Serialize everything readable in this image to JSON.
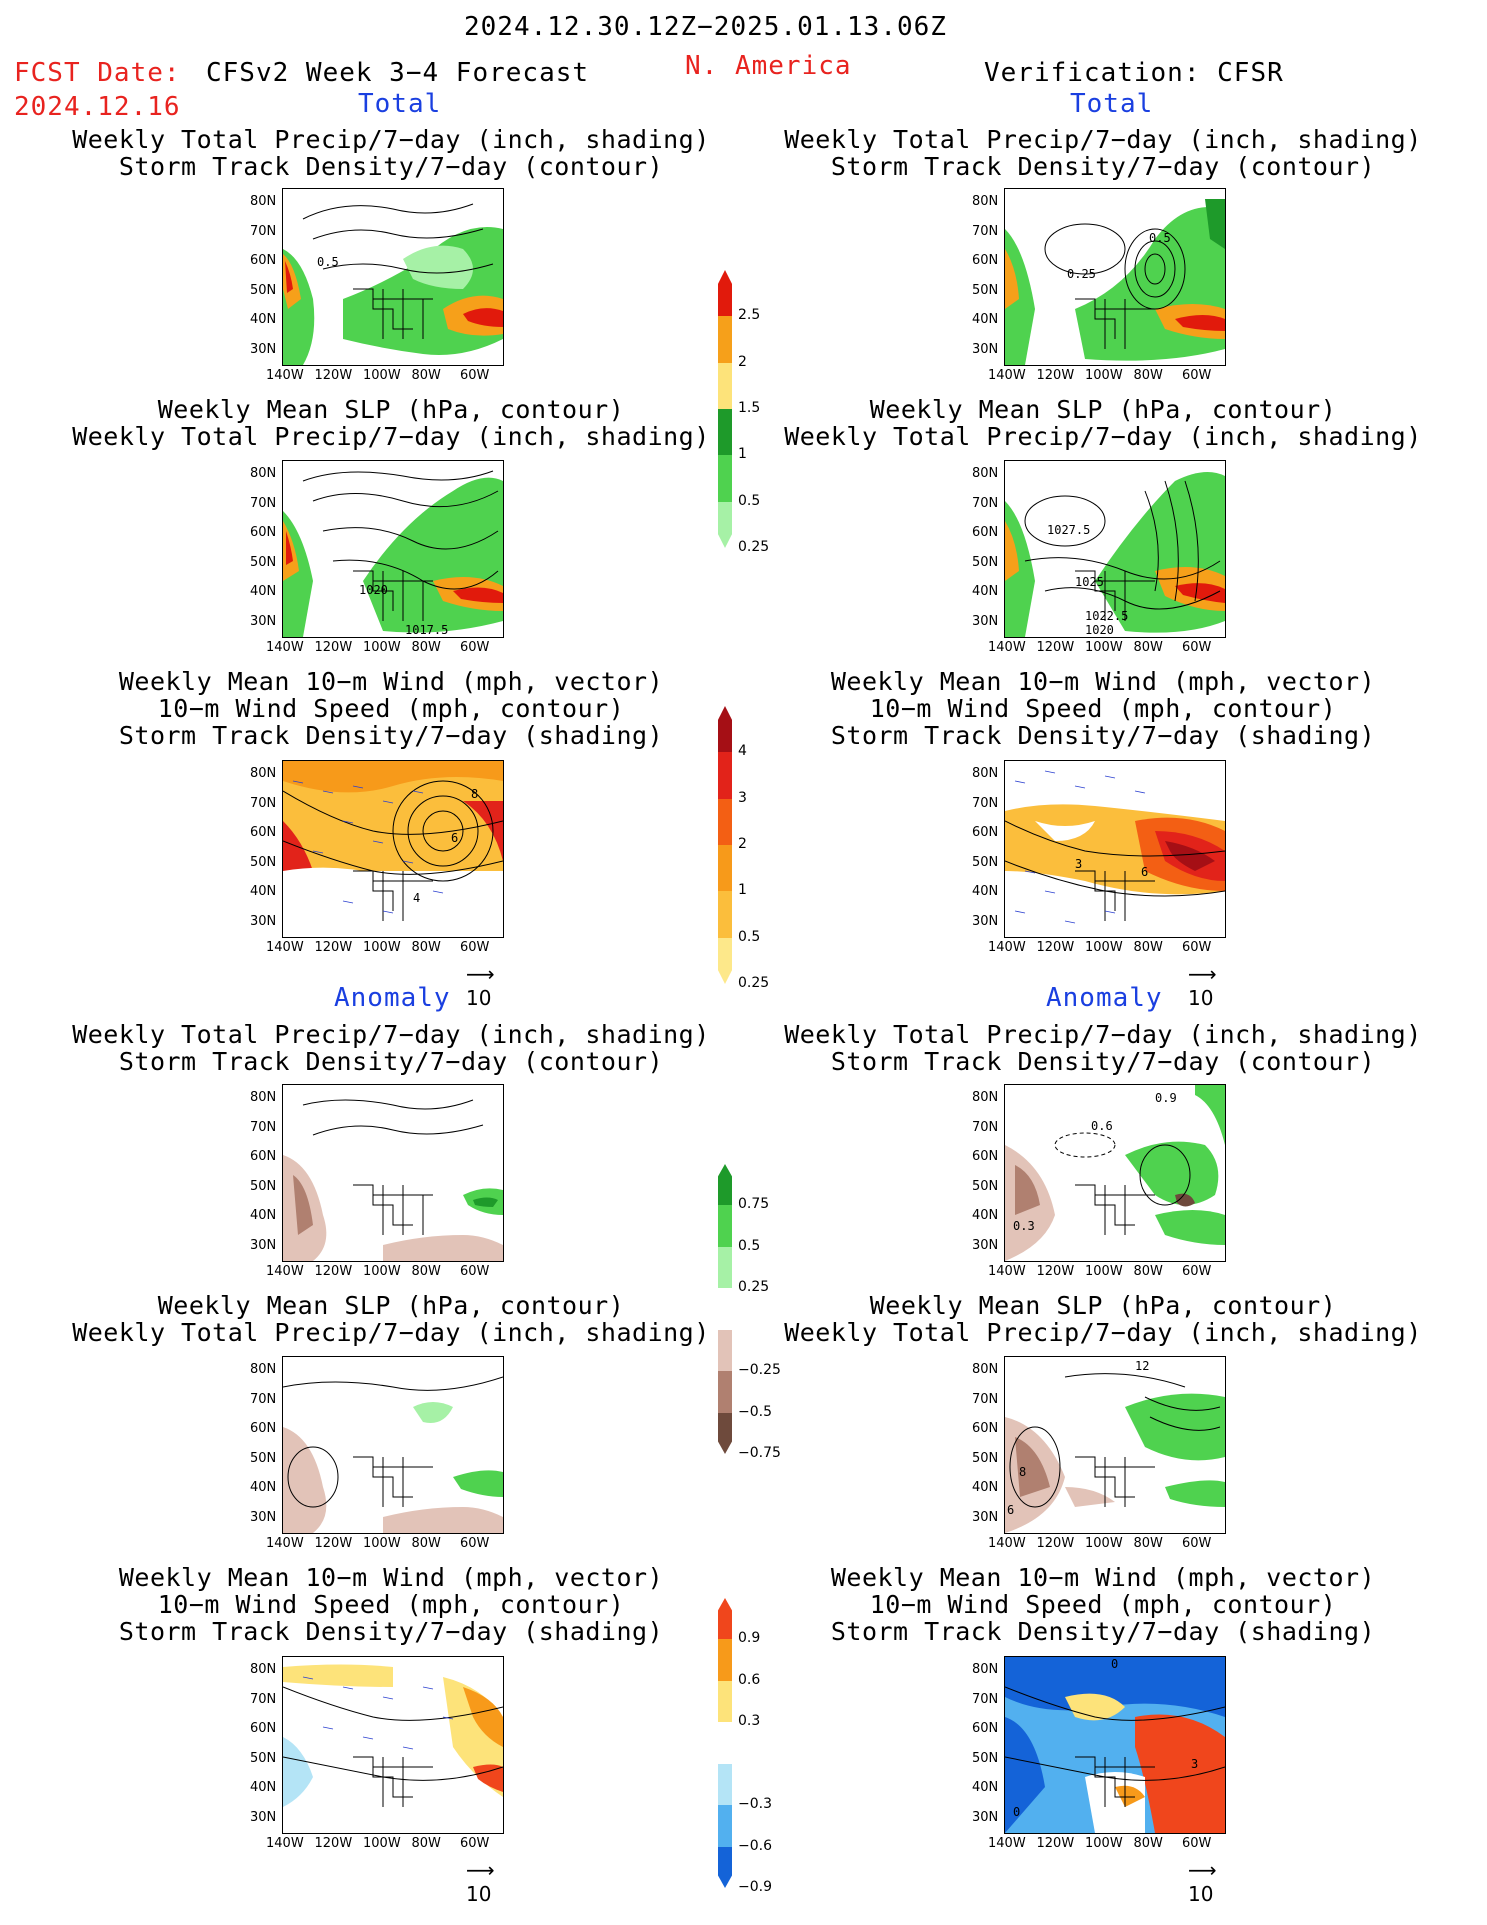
{
  "header": {
    "period": "2024.12.30.12Z−2025.01.13.06Z",
    "fcst_label": "FCST Date:",
    "fcst_date": "2024.12.16",
    "model": "CFSv2 Week 3−4 Forecast",
    "region": "N. America",
    "verification": "Verification: CFSR"
  },
  "sections": {
    "total": "Total",
    "anomaly": "Anomaly"
  },
  "titles": {
    "precip_storm": [
      "Weekly Total Precip/7−day (inch, shading)",
      "Storm Track Density/7−day (contour)"
    ],
    "slp_precip": [
      "Weekly Mean SLP (hPa, contour)",
      "Weekly Total Precip/7−day (inch, shading)"
    ],
    "wind_storm": [
      "Weekly Mean 10−m Wind (mph, vector)",
      "10−m Wind Speed (mph, contour)",
      "Storm Track Density/7−day (shading)"
    ]
  },
  "axes": {
    "lat_ticks": [
      "80N",
      "70N",
      "60N",
      "50N",
      "40N",
      "30N"
    ],
    "lon_ticks": [
      "140W",
      "120W",
      "100W",
      "80W",
      "60W"
    ]
  },
  "vector_ref": "10",
  "map_labels": {
    "fc_total_precip": [
      "0.5"
    ],
    "vf_total_precip": [
      "0.5",
      "0.25"
    ],
    "fc_total_slp": [
      "1020",
      "1017.5"
    ],
    "vf_total_slp": [
      "1027.5",
      "1025",
      "1022.5",
      "1020"
    ],
    "fc_total_wind": [
      "8",
      "6",
      "4"
    ],
    "vf_total_wind": [
      "3",
      "6"
    ],
    "vf_anom_precip": [
      "0.9",
      "0.6",
      "0.3"
    ],
    "vf_anom_slp": [
      "12",
      "8",
      "6"
    ],
    "vf_anom_wind": [
      "0",
      "3",
      "0"
    ]
  },
  "colorbars": {
    "precip_total": {
      "labels": [
        "2.5",
        "2",
        "1.5",
        "1",
        "0.5",
        "0.25"
      ],
      "colors": [
        "#e11a0c",
        "#f6a01a",
        "#fde37a",
        "#1e9a2a",
        "#4fd24f",
        "#a6f1a6"
      ]
    },
    "storm_total": {
      "labels": [
        "4",
        "3",
        "2",
        "1",
        "0.5",
        "0.25"
      ],
      "colors": [
        "#a50f15",
        "#e2231a",
        "#f35f14",
        "#f79a1a",
        "#fbbe3c",
        "#fde88a"
      ]
    },
    "precip_anom": {
      "labels": [
        "0.75",
        "0.5",
        "0.25",
        "−0.25",
        "−0.5",
        "−0.75"
      ],
      "colors": [
        "#1e9a2a",
        "#4fd24f",
        "#a6f1a6",
        "#ffffff",
        "#e2c3b8",
        "#b08070",
        "#6e4a3c"
      ]
    },
    "storm_anom": {
      "labels": [
        "0.9",
        "0.6",
        "0.3",
        "−0.3",
        "−0.6",
        "−0.9"
      ],
      "colors": [
        "#f0461c",
        "#f79a1a",
        "#fde37a",
        "#ffffff",
        "#b4e4f6",
        "#52b0ef",
        "#1463d8"
      ]
    }
  },
  "chart_data": [
    {
      "type": "heatmap",
      "panel": "forecast-total-precip",
      "title": "Weekly Total Precip/7−day (inch, shading) / Storm Track Density/7−day (contour)"
    },
    {
      "type": "heatmap",
      "panel": "verification-total-precip",
      "title": "Weekly Total Precip/7−day (inch, shading) / Storm Track Density/7−day (contour)"
    },
    {
      "type": "heatmap",
      "panel": "forecast-total-slp",
      "title": "Weekly Mean SLP (hPa, contour) / Weekly Total Precip/7−day (inch, shading)"
    },
    {
      "type": "heatmap",
      "panel": "verification-total-slp",
      "title": "Weekly Mean SLP (hPa, contour) / Weekly Total Precip/7−day (inch, shading)"
    },
    {
      "type": "heatmap",
      "panel": "forecast-total-wind",
      "title": "Weekly Mean 10−m Wind (mph, vector) / 10−m Wind Speed (mph, contour) / Storm Track Density/7−day (shading)"
    },
    {
      "type": "heatmap",
      "panel": "verification-total-wind",
      "title": "Weekly Mean 10−m Wind (mph, vector) / 10−m Wind Speed (mph, contour) / Storm Track Density/7−day (shading)"
    },
    {
      "type": "heatmap",
      "panel": "forecast-anomaly-precip",
      "title": "Weekly Total Precip/7−day (inch, shading) / Storm Track Density/7−day (contour)"
    },
    {
      "type": "heatmap",
      "panel": "verification-anomaly-precip",
      "title": "Weekly Total Precip/7−day (inch, shading) / Storm Track Density/7−day (contour)"
    },
    {
      "type": "heatmap",
      "panel": "forecast-anomaly-slp",
      "title": "Weekly Mean SLP (hPa, contour) / Weekly Total Precip/7−day (inch, shading)"
    },
    {
      "type": "heatmap",
      "panel": "verification-anomaly-slp",
      "title": "Weekly Mean SLP (hPa, contour) / Weekly Total Precip/7−day (inch, shading)"
    },
    {
      "type": "heatmap",
      "panel": "forecast-anomaly-wind",
      "title": "Weekly Mean 10−m Wind (mph, vector) / 10−m Wind Speed (mph, contour) / Storm Track Density/7−day (shading)"
    },
    {
      "type": "heatmap",
      "panel": "verification-anomaly-wind",
      "title": "Weekly Mean 10−m Wind (mph, vector) / 10−m Wind Speed (mph, contour) / Storm Track Density/7−day (shading)"
    }
  ]
}
